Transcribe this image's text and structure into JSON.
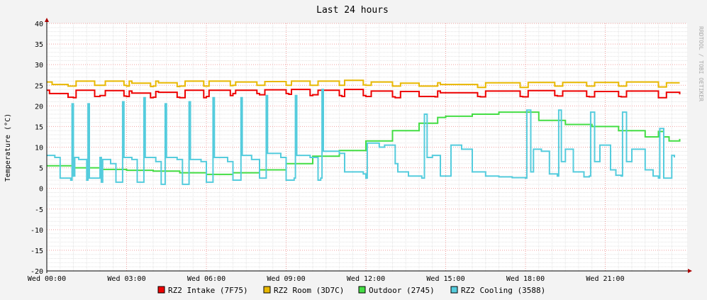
{
  "chart_data": {
    "type": "line",
    "title": "Last 24 hours",
    "ylabel": "Temperature (°C)",
    "xlabel": "",
    "credit": "RRDTOOL / TOBI OETIKER",
    "ylim": [
      -20,
      40
    ],
    "y_ticks": [
      40,
      35,
      30,
      25,
      20,
      15,
      10,
      5,
      0,
      -5,
      -10,
      -15,
      -20
    ],
    "x_range": [
      0,
      24
    ],
    "x_ticks": [
      {
        "h": 0,
        "label": "Wed 00:00"
      },
      {
        "h": 3,
        "label": "Wed 03:00"
      },
      {
        "h": 6,
        "label": "Wed 06:00"
      },
      {
        "h": 9,
        "label": "Wed 09:00"
      },
      {
        "h": 12,
        "label": "Wed 12:00"
      },
      {
        "h": 15,
        "label": "Wed 15:00"
      },
      {
        "h": 18,
        "label": "Wed 18:00"
      },
      {
        "h": 21,
        "label": "Wed 21:00"
      }
    ],
    "grid": true,
    "legend_position": "bottom",
    "series": [
      {
        "name": "RZ2 Intake (7F75)",
        "color": "#ee0000",
        "x": [
          0.0,
          0.1,
          0.8,
          1.0,
          1.1,
          1.8,
          2.0,
          2.2,
          2.9,
          3.0,
          3.1,
          3.2,
          3.9,
          4.0,
          4.1,
          4.2,
          4.9,
          5.0,
          5.2,
          5.9,
          6.0,
          6.1,
          6.9,
          7.0,
          7.1,
          7.9,
          8.0,
          8.2,
          9.0,
          9.1,
          9.2,
          9.9,
          10.0,
          10.2,
          11.0,
          11.1,
          11.2,
          11.9,
          12.0,
          12.2,
          13.0,
          13.1,
          13.3,
          14.0,
          14.6,
          14.7,
          14.8,
          16.2,
          16.3,
          16.5,
          17.8,
          17.9,
          18.1,
          19.1,
          19.2,
          19.4,
          20.3,
          20.4,
          20.6,
          21.5,
          21.6,
          21.8,
          23.0,
          23.1,
          23.3,
          23.8
        ],
        "y": [
          23.8,
          23.0,
          22.1,
          22.0,
          23.8,
          22.3,
          22.5,
          23.7,
          22.4,
          22.3,
          23.6,
          23.1,
          22.0,
          22.1,
          23.5,
          23.3,
          22.1,
          22.0,
          23.8,
          22.0,
          22.3,
          23.8,
          22.5,
          23.0,
          23.8,
          23.0,
          22.7,
          23.9,
          23.0,
          22.8,
          24.0,
          22.5,
          22.7,
          23.8,
          22.5,
          22.3,
          24.0,
          22.5,
          22.3,
          23.6,
          22.2,
          22.0,
          23.5,
          22.3,
          22.2,
          23.6,
          23.2,
          22.3,
          22.2,
          23.6,
          22.3,
          22.2,
          23.7,
          22.5,
          22.4,
          23.6,
          22.3,
          22.2,
          23.5,
          22.3,
          22.2,
          23.6,
          22.0,
          22.0,
          23.3,
          22.8
        ]
      },
      {
        "name": "RZ2 Room (3D7C)",
        "color": "#e8b800",
        "x": [
          0.0,
          0.2,
          0.8,
          1.0,
          1.1,
          1.8,
          2.0,
          2.2,
          2.9,
          3.0,
          3.1,
          3.2,
          3.9,
          4.0,
          4.1,
          4.2,
          4.9,
          5.0,
          5.2,
          5.9,
          6.0,
          6.1,
          6.9,
          7.0,
          7.1,
          7.9,
          8.0,
          8.2,
          9.0,
          9.1,
          9.2,
          9.9,
          10.0,
          10.2,
          11.0,
          11.1,
          11.2,
          11.9,
          12.0,
          12.2,
          13.0,
          13.1,
          13.3,
          14.0,
          14.6,
          14.7,
          14.8,
          16.2,
          16.3,
          16.5,
          17.8,
          17.9,
          18.1,
          19.1,
          19.2,
          19.4,
          20.3,
          20.4,
          20.6,
          21.5,
          21.6,
          21.8,
          23.0,
          23.1,
          23.3,
          23.8
        ],
        "y": [
          25.8,
          25.2,
          24.8,
          24.8,
          26.0,
          25.0,
          25.0,
          26.0,
          25.0,
          24.8,
          26.0,
          25.5,
          24.7,
          24.8,
          26.0,
          25.6,
          24.7,
          24.8,
          26.0,
          24.8,
          24.8,
          26.0,
          24.9,
          25.0,
          25.8,
          25.0,
          25.0,
          25.9,
          25.0,
          25.0,
          26.0,
          25.0,
          25.0,
          26.0,
          25.0,
          25.0,
          26.2,
          25.1,
          25.0,
          25.8,
          24.8,
          24.8,
          25.5,
          24.8,
          24.8,
          25.6,
          25.2,
          24.5,
          24.5,
          25.6,
          24.5,
          24.5,
          25.7,
          24.8,
          24.8,
          25.7,
          24.8,
          24.8,
          25.7,
          24.8,
          24.8,
          25.8,
          24.6,
          24.6,
          25.6,
          25.6
        ]
      },
      {
        "name": "Outdoor (2745)",
        "color": "#44dd44",
        "x": [
          0.0,
          1.0,
          2.0,
          3.0,
          4.0,
          5.0,
          6.0,
          7.0,
          8.0,
          9.0,
          10.0,
          11.0,
          12.0,
          13.0,
          14.0,
          14.7,
          15.0,
          16.0,
          17.0,
          17.8,
          18.5,
          19.5,
          20.5,
          21.5,
          22.5,
          23.0,
          23.2,
          23.4,
          23.8
        ],
        "y": [
          5.5,
          5.0,
          4.6,
          4.4,
          4.2,
          3.8,
          3.4,
          3.8,
          4.5,
          6.0,
          7.8,
          9.2,
          11.5,
          14.0,
          15.8,
          17.2,
          17.5,
          18.0,
          18.5,
          18.5,
          16.5,
          15.5,
          15.0,
          14.0,
          12.5,
          13.8,
          12.5,
          11.5,
          12.0
        ]
      },
      {
        "name": "RZ2 Cooling (3588)",
        "color": "#55ccdd",
        "x": [
          0.0,
          0.3,
          0.5,
          0.9,
          0.95,
          1.0,
          1.05,
          1.2,
          1.5,
          1.55,
          1.6,
          2.0,
          2.05,
          2.1,
          2.4,
          2.6,
          2.8,
          2.85,
          2.9,
          3.2,
          3.4,
          3.6,
          3.65,
          3.7,
          4.1,
          4.3,
          4.4,
          4.45,
          4.5,
          4.9,
          5.1,
          5.3,
          5.35,
          5.4,
          5.8,
          6.0,
          6.2,
          6.25,
          6.3,
          6.8,
          7.0,
          7.25,
          7.3,
          7.35,
          7.7,
          8.0,
          8.2,
          8.25,
          8.3,
          8.8,
          9.0,
          9.3,
          9.35,
          9.4,
          9.9,
          10.2,
          10.3,
          10.35,
          10.4,
          11.0,
          11.2,
          11.9,
          12.0,
          12.05,
          12.5,
          12.7,
          13.1,
          13.2,
          13.6,
          14.0,
          14.1,
          14.2,
          14.3,
          14.5,
          14.8,
          15.2,
          15.6,
          16.0,
          16.5,
          17.0,
          17.5,
          18.0,
          18.05,
          18.2,
          18.3,
          18.6,
          18.9,
          19.2,
          19.25,
          19.35,
          19.5,
          19.8,
          20.2,
          20.4,
          20.45,
          20.6,
          20.8,
          21.2,
          21.4,
          21.6,
          21.65,
          21.8,
          22.0,
          22.5,
          22.8,
          23.0,
          23.05,
          23.2,
          23.5,
          23.6
        ],
        "y": [
          8.0,
          7.5,
          2.5,
          2.0,
          20.5,
          3.0,
          7.5,
          7.0,
          2.0,
          20.5,
          2.5,
          7.5,
          1.5,
          7.0,
          6.0,
          1.5,
          1.5,
          21.0,
          7.5,
          7.0,
          1.5,
          1.5,
          22.0,
          7.5,
          6.5,
          1.0,
          1.0,
          20.5,
          7.5,
          7.0,
          1.0,
          1.0,
          21.0,
          7.0,
          6.5,
          1.5,
          1.5,
          22.0,
          7.5,
          6.5,
          2.0,
          2.0,
          22.0,
          8.0,
          7.0,
          2.5,
          2.5,
          22.5,
          8.5,
          7.5,
          2.0,
          2.5,
          22.5,
          8.0,
          7.5,
          2.0,
          2.5,
          24.0,
          9.0,
          8.5,
          4.0,
          3.5,
          2.5,
          11.0,
          10.0,
          10.5,
          6.0,
          4.0,
          3.0,
          3.0,
          2.5,
          18.0,
          7.5,
          8.0,
          3.0,
          10.5,
          9.5,
          4.0,
          3.0,
          2.8,
          2.6,
          2.5,
          19.0,
          4.0,
          9.5,
          9.0,
          3.5,
          3.0,
          19.0,
          6.5,
          9.5,
          4.0,
          2.8,
          3.0,
          18.5,
          6.5,
          10.5,
          4.5,
          3.2,
          3.0,
          18.5,
          6.5,
          9.5,
          4.5,
          3.0,
          2.5,
          14.5,
          2.5,
          8.0,
          7.5
        ]
      }
    ]
  }
}
